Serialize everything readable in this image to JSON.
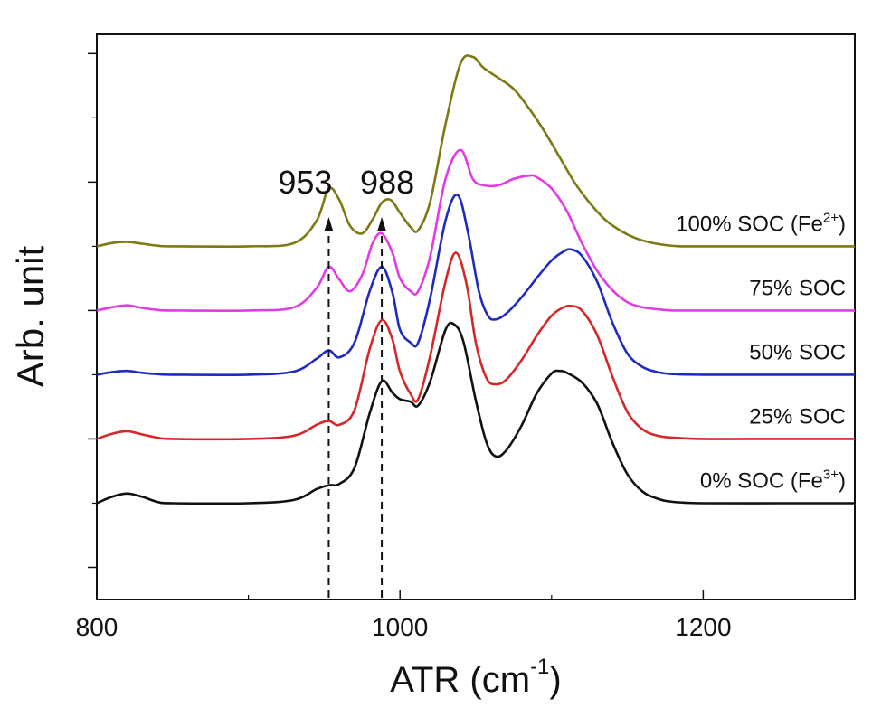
{
  "chart_data": {
    "type": "line",
    "xlabel_main": "ATR (cm",
    "xlabel_sup": "-1",
    "xlabel_end": ")",
    "ylabel": "Arb. unit",
    "xlim": [
      800,
      1300
    ],
    "ylim": [
      -0.5,
      8.3
    ],
    "x_ticks": [
      800,
      1000,
      1200
    ],
    "x_tick_labels": [
      "800",
      "1000",
      "1200"
    ],
    "y_ticks": [
      0,
      2,
      4,
      6,
      8
    ],
    "grid": false,
    "annotations": [
      {
        "label": "953",
        "x": 953,
        "y_from": -0.4,
        "y_to": 5.4
      },
      {
        "label": "988",
        "x": 988,
        "y_from": -0.4,
        "y_to": 5.4
      }
    ],
    "series": [
      {
        "name": "0% SOC (Fe3+)",
        "label_main": "0% SOC (Fe",
        "label_sup": "3+",
        "label_end": ")",
        "color": "#111111",
        "offset": 1.0,
        "x": [
          800,
          810,
          820,
          830,
          840,
          850,
          900,
          930,
          945,
          953,
          960,
          970,
          980,
          988,
          995,
          1000,
          1007,
          1012,
          1020,
          1030,
          1036,
          1042,
          1050,
          1057,
          1063,
          1070,
          1080,
          1090,
          1100,
          1105,
          1110,
          1120,
          1130,
          1140,
          1150,
          1160,
          1170,
          1180,
          1200,
          1250,
          1300
        ],
        "y": [
          0.0,
          0.1,
          0.15,
          0.1,
          0.02,
          0.0,
          0.0,
          0.05,
          0.22,
          0.28,
          0.3,
          0.55,
          1.4,
          1.9,
          1.72,
          1.62,
          1.58,
          1.52,
          1.9,
          2.7,
          2.78,
          2.5,
          1.6,
          0.95,
          0.73,
          0.82,
          1.2,
          1.7,
          2.02,
          2.06,
          2.03,
          1.88,
          1.55,
          0.95,
          0.45,
          0.18,
          0.07,
          0.02,
          0.0,
          0.0,
          0.0
        ]
      },
      {
        "name": "25% SOC",
        "label_main": "25% SOC",
        "color": "#d62728",
        "offset": 2.0,
        "x": [
          800,
          810,
          820,
          830,
          840,
          850,
          900,
          930,
          945,
          953,
          960,
          970,
          980,
          988,
          995,
          1000,
          1007,
          1012,
          1020,
          1030,
          1037,
          1044,
          1050,
          1057,
          1063,
          1070,
          1080,
          1090,
          1100,
          1108,
          1113,
          1120,
          1130,
          1140,
          1150,
          1160,
          1170,
          1180,
          1200,
          1250,
          1300
        ],
        "y": [
          0.0,
          0.08,
          0.12,
          0.07,
          0.02,
          0.0,
          0.0,
          0.05,
          0.22,
          0.28,
          0.22,
          0.45,
          1.4,
          1.85,
          1.55,
          1.05,
          0.7,
          0.62,
          1.3,
          2.45,
          2.9,
          2.4,
          1.5,
          0.95,
          0.85,
          0.92,
          1.22,
          1.6,
          1.92,
          2.05,
          2.07,
          2.0,
          1.62,
          0.98,
          0.42,
          0.15,
          0.05,
          0.02,
          0.0,
          0.0,
          0.0
        ]
      },
      {
        "name": "50% SOC",
        "label_main": "50% SOC",
        "color": "#1f2bbf",
        "offset": 3.0,
        "x": [
          800,
          810,
          820,
          830,
          840,
          850,
          900,
          930,
          945,
          953,
          960,
          970,
          980,
          988,
          995,
          1000,
          1007,
          1012,
          1020,
          1030,
          1038,
          1045,
          1052,
          1058,
          1063,
          1070,
          1080,
          1090,
          1100,
          1108,
          1113,
          1120,
          1130,
          1140,
          1150,
          1160,
          1170,
          1180,
          1200,
          1250,
          1300
        ],
        "y": [
          0.0,
          0.04,
          0.06,
          0.03,
          0.01,
          0.0,
          0.0,
          0.05,
          0.25,
          0.38,
          0.27,
          0.5,
          1.3,
          1.68,
          1.28,
          0.7,
          0.5,
          0.5,
          1.2,
          2.4,
          2.8,
          2.2,
          1.3,
          0.92,
          0.86,
          0.95,
          1.2,
          1.5,
          1.78,
          1.92,
          1.95,
          1.85,
          1.45,
          0.82,
          0.33,
          0.12,
          0.04,
          0.01,
          0.0,
          0.0,
          0.0
        ]
      },
      {
        "name": "75% SOC",
        "label_main": "75% SOC",
        "color": "#e23be6",
        "offset": 4.0,
        "x": [
          800,
          810,
          820,
          830,
          840,
          850,
          900,
          930,
          945,
          953,
          960,
          967,
          975,
          982,
          988,
          995,
          1000,
          1007,
          1012,
          1020,
          1030,
          1040,
          1048,
          1055,
          1065,
          1075,
          1085,
          1090,
          1100,
          1110,
          1120,
          1130,
          1140,
          1150,
          1160,
          1170,
          1180,
          1200,
          1250,
          1300
        ],
        "y": [
          0.0,
          0.05,
          0.08,
          0.04,
          0.01,
          0.0,
          0.0,
          0.05,
          0.35,
          0.68,
          0.48,
          0.3,
          0.55,
          1.05,
          1.2,
          0.9,
          0.5,
          0.3,
          0.3,
          0.85,
          2.05,
          2.5,
          2.05,
          1.95,
          1.95,
          2.05,
          2.1,
          2.08,
          1.9,
          1.55,
          1.05,
          0.62,
          0.32,
          0.13,
          0.05,
          0.02,
          0.0,
          0.0,
          0.0,
          0.0
        ]
      },
      {
        "name": "100% SOC (Fe2+)",
        "label_main": "100% SOC (Fe",
        "label_sup": "2+",
        "label_end": ")",
        "color": "#7d7a12",
        "offset": 5.0,
        "x": [
          800,
          810,
          820,
          830,
          840,
          850,
          900,
          930,
          945,
          953,
          960,
          967,
          975,
          982,
          988,
          994,
          1000,
          1007,
          1012,
          1020,
          1030,
          1040,
          1048,
          1055,
          1065,
          1075,
          1085,
          1095,
          1105,
          1115,
          1125,
          1135,
          1145,
          1155,
          1165,
          1175,
          1185,
          1200,
          1250,
          1300
        ],
        "y": [
          0.0,
          0.05,
          0.07,
          0.04,
          0.01,
          0.0,
          0.0,
          0.05,
          0.4,
          0.9,
          0.72,
          0.32,
          0.2,
          0.42,
          0.68,
          0.72,
          0.52,
          0.3,
          0.25,
          0.7,
          1.9,
          2.85,
          2.95,
          2.78,
          2.62,
          2.45,
          2.15,
          1.8,
          1.4,
          1.0,
          0.68,
          0.42,
          0.25,
          0.13,
          0.06,
          0.02,
          0.0,
          0.0,
          0.0,
          0.0
        ]
      }
    ]
  }
}
